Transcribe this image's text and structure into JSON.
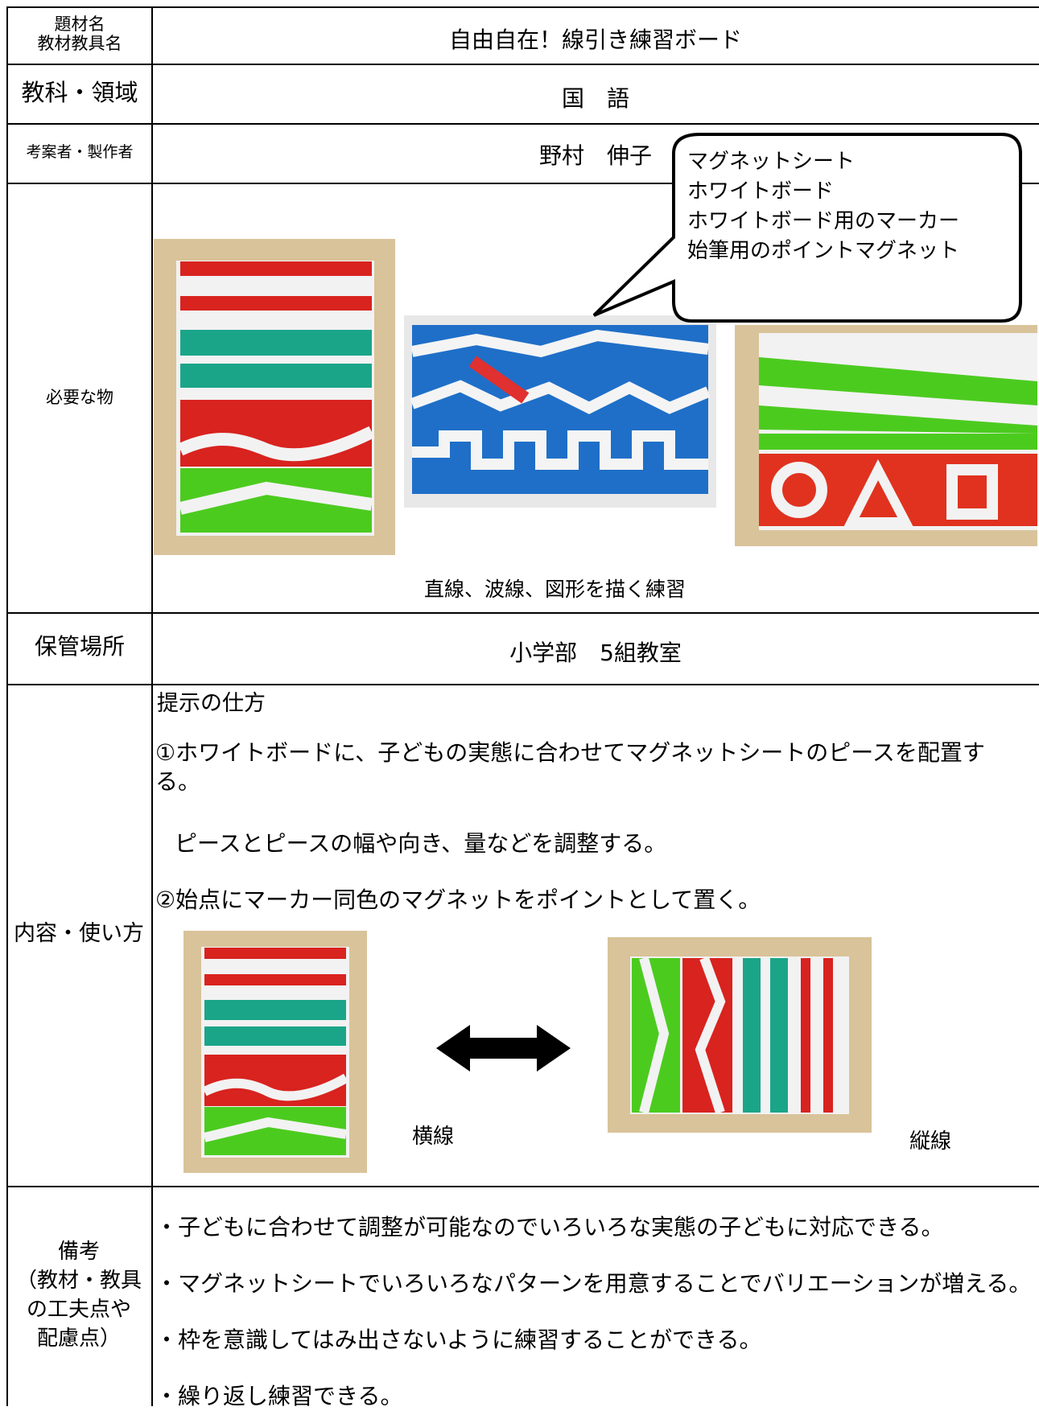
{
  "rows": [
    {
      "header": [
        "題材名",
        "教材教具名"
      ],
      "content": "自由自在！線引き練習ボード"
    },
    {
      "header": "教科・領域",
      "content": "国　語"
    },
    {
      "header": "考案者・製作者",
      "content": "野村　伸子"
    },
    {
      "header": "必要な物",
      "callout": [
        "マグネットシート",
        "ホワイトボード",
        "ホワイトボード用のマーカー",
        "始筆用のポイントマグネット"
      ],
      "caption": "直線、波線、図形を描く練習"
    },
    {
      "header": "保管場所",
      "content": "小学部　5組教室"
    },
    {
      "header": "内容・使い方",
      "heading": "提示の仕方",
      "steps": [
        "①ホワイトボードに、子どもの実態に合わせてマグネットシートのピースを配置する。",
        "ピースとピースの幅や向き、量などを調整する。",
        "②始点にマーカー同色のマグネットをポイントとして置く。"
      ],
      "photo_labels": [
        "横線",
        "縦線"
      ]
    },
    {
      "header": [
        "備考",
        "（教材・教具",
        "の工夫点や",
        "配慮点）"
      ],
      "notes": [
        "・子どもに合わせて調整が可能なのでいろいろな実態の子どもに対応できる。",
        "・マグネットシートでいろいろなパターンを用意することでバリエーションが増える。",
        "・枠を意識してはみ出さないように練習することができる。",
        "・繰り返し練習できる。"
      ]
    }
  ]
}
